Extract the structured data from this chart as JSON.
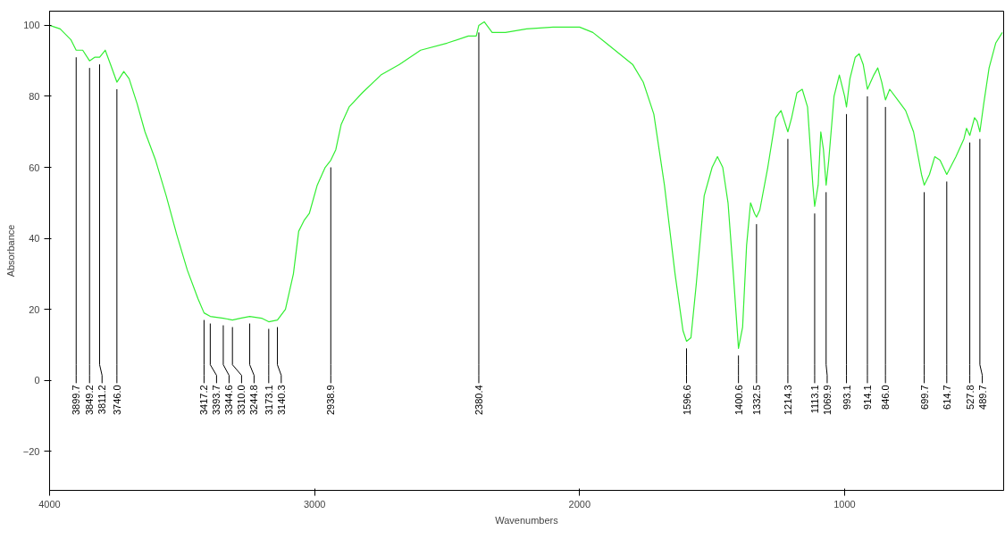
{
  "chart_data": {
    "type": "line",
    "xlabel": "Wavenumbers",
    "ylabel": "Absorbance",
    "xlim": [
      4000,
      400
    ],
    "ylim": [
      -31,
      104
    ],
    "xticks": [
      4000,
      3000,
      2000,
      1000
    ],
    "yticks": [
      -20,
      0,
      20,
      40,
      60,
      80,
      100
    ],
    "grid": false,
    "marker": "none",
    "line_style": "solid",
    "series": [
      {
        "color": "#33ee33",
        "x": [
          4000,
          3960,
          3920,
          3899.7,
          3875,
          3849.2,
          3830,
          3811.2,
          3790,
          3770,
          3746.0,
          3720,
          3700,
          3670,
          3640,
          3600,
          3560,
          3520,
          3480,
          3440,
          3417.2,
          3393.7,
          3344.6,
          3310.0,
          3280,
          3244.8,
          3200,
          3173.1,
          3140.3,
          3110,
          3080,
          3060,
          3040,
          3020,
          2990,
          2960,
          2938.9,
          2920,
          2900,
          2870,
          2820,
          2750,
          2680,
          2600,
          2500,
          2420,
          2390,
          2380.4,
          2360,
          2330,
          2280,
          2200,
          2100,
          2000,
          1950,
          1900,
          1850,
          1800,
          1760,
          1720,
          1680,
          1640,
          1610,
          1596.6,
          1580,
          1560,
          1530,
          1500,
          1480,
          1460,
          1440,
          1420,
          1400.6,
          1385,
          1370,
          1355,
          1340,
          1332.5,
          1320,
          1290,
          1260,
          1240,
          1214.3,
          1200,
          1180,
          1160,
          1140,
          1120,
          1113.1,
          1100,
          1090,
          1080,
          1069.9,
          1060,
          1040,
          1020,
          1000,
          993.1,
          980,
          960,
          945,
          930,
          914.1,
          890,
          875,
          860,
          846.0,
          830,
          800,
          770,
          740,
          710,
          699.7,
          680,
          660,
          640,
          614.7,
          580,
          550,
          540,
          527.8,
          510,
          500,
          489.7,
          475,
          455,
          430,
          405
        ],
        "values": [
          100,
          99,
          96,
          93,
          93,
          90,
          91,
          91,
          93,
          89,
          84,
          87,
          85,
          78,
          70,
          62,
          52,
          41,
          31,
          23,
          19,
          18,
          17.5,
          17,
          17.5,
          18,
          17.5,
          16.5,
          17,
          20,
          30,
          42,
          45,
          47,
          55,
          60,
          62,
          65,
          72,
          77,
          81,
          86,
          89,
          93,
          95,
          97,
          97,
          100,
          101,
          98,
          98,
          99,
          99.5,
          99.5,
          98,
          95,
          92,
          89,
          84,
          75,
          55,
          30,
          14,
          11,
          12,
          27,
          52,
          60,
          63,
          60,
          50,
          30,
          9,
          15,
          38,
          50,
          47,
          46,
          48,
          60,
          74,
          76,
          70,
          74,
          81,
          82,
          77,
          55,
          49,
          55,
          70,
          65,
          55,
          62,
          80,
          86,
          80,
          77,
          85,
          91,
          92,
          89,
          82,
          86,
          88,
          84,
          79,
          82,
          79,
          76,
          70,
          58,
          55,
          58,
          63,
          62,
          58,
          63,
          68,
          71,
          69,
          74,
          73,
          70,
          78,
          88,
          95,
          98
        ]
      }
    ],
    "annotations": [
      {
        "text": "3899.7",
        "x": 3899.7,
        "y": 93
      },
      {
        "text": "3849.2",
        "x": 3849.2,
        "y": 90
      },
      {
        "text": "3811.2",
        "x": 3811.2,
        "y": 91
      },
      {
        "text": "3746.0",
        "x": 3746.0,
        "y": 84
      },
      {
        "text": "3417.2",
        "x": 3417.2,
        "y": 19
      },
      {
        "text": "3393.7",
        "x": 3393.7,
        "y": 18
      },
      {
        "text": "3344.6",
        "x": 3344.6,
        "y": 17.5
      },
      {
        "text": "3310.0",
        "x": 3310.0,
        "y": 17
      },
      {
        "text": "3244.8",
        "x": 3244.8,
        "y": 18
      },
      {
        "text": "3173.1",
        "x": 3173.1,
        "y": 16.5
      },
      {
        "text": "3140.3",
        "x": 3140.3,
        "y": 17
      },
      {
        "text": "2938.9",
        "x": 2938.9,
        "y": 62
      },
      {
        "text": "2380.4",
        "x": 2380.4,
        "y": 100
      },
      {
        "text": "1596.6",
        "x": 1596.6,
        "y": 11
      },
      {
        "text": "1400.6",
        "x": 1400.6,
        "y": 9
      },
      {
        "text": "1332.5",
        "x": 1332.5,
        "y": 46
      },
      {
        "text": "1214.3",
        "x": 1214.3,
        "y": 70
      },
      {
        "text": "1113.1",
        "x": 1113.1,
        "y": 49
      },
      {
        "text": "1069.9",
        "x": 1069.9,
        "y": 55
      },
      {
        "text": "993.1",
        "x": 993.1,
        "y": 77
      },
      {
        "text": "914.1",
        "x": 914.1,
        "y": 82
      },
      {
        "text": "846.0",
        "x": 846.0,
        "y": 79
      },
      {
        "text": "699.7",
        "x": 699.7,
        "y": 55
      },
      {
        "text": "614.7",
        "x": 614.7,
        "y": 58
      },
      {
        "text": "527.8",
        "x": 527.8,
        "y": 69
      },
      {
        "text": "489.7",
        "x": 489.7,
        "y": 70
      }
    ]
  }
}
